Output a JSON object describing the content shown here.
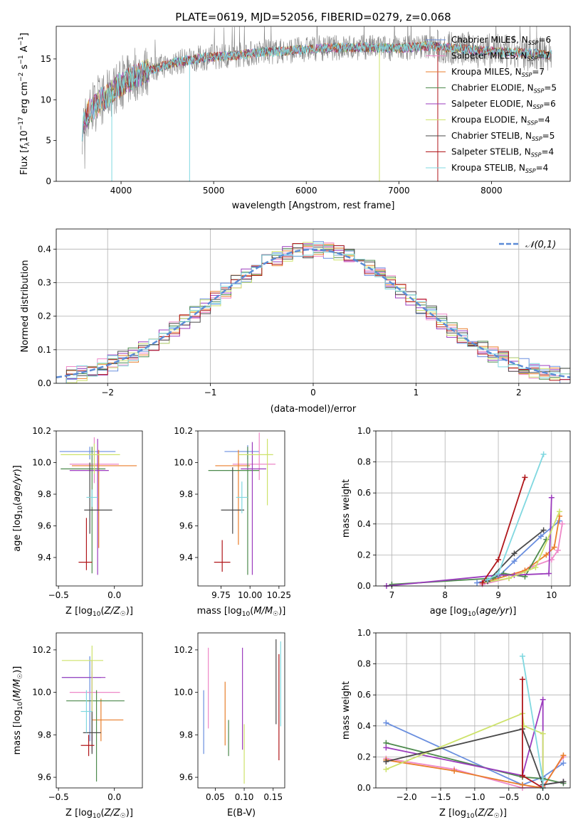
{
  "figure": {
    "title": "PLATE=0619, MJD=52056, FIBERID=0279, z=0.068"
  },
  "series_styles": [
    {
      "name": "Chabrier MILES",
      "n_ssp": "6",
      "color": "#6a8fdf"
    },
    {
      "name": "Salpeter MILES",
      "n_ssp": "7",
      "color": "#ee88c8"
    },
    {
      "name": "Kroupa MILES",
      "n_ssp": "7",
      "color": "#e97e2b"
    },
    {
      "name": "Chabrier ELODIE",
      "n_ssp": "5",
      "color": "#4d8a4d"
    },
    {
      "name": "Salpeter ELODIE",
      "n_ssp": "6",
      "color": "#9b3bbd"
    },
    {
      "name": "Kroupa ELODIE",
      "n_ssp": "4",
      "color": "#cde26a"
    },
    {
      "name": "Chabrier STELIB",
      "n_ssp": "5",
      "color": "#4a4a4a"
    },
    {
      "name": "Salpeter STELIB",
      "n_ssp": "4",
      "color": "#b0161a"
    },
    {
      "name": "Kroupa STELIB",
      "n_ssp": "4",
      "color": "#80d8e0"
    }
  ],
  "chart_data": [
    {
      "id": "spectrum",
      "type": "line",
      "title": "PLATE=0619, MJD=52056, FIBERID=0279, z=0.068",
      "xlabel": "wavelength [Angstrom, rest frame]",
      "ylabel": "Flux [f_λ 10^-17 erg cm^-2 s^-1 A^-1]",
      "xlim": [
        3300,
        8850
      ],
      "ylim": [
        0,
        19
      ],
      "xticks": [
        4000,
        5000,
        6000,
        7000,
        8000
      ],
      "yticks": [
        0,
        5,
        10,
        15
      ],
      "grid": false,
      "legend": "upper right",
      "data_color": "#808080",
      "continuum": [
        [
          3580,
          6.5
        ],
        [
          3650,
          8.5
        ],
        [
          3750,
          9.5
        ],
        [
          3850,
          10.5
        ],
        [
          3950,
          11.5
        ],
        [
          4050,
          12.2
        ],
        [
          4200,
          13.2
        ],
        [
          4400,
          14.0
        ],
        [
          4600,
          14.6
        ],
        [
          4800,
          15.0
        ],
        [
          5000,
          15.3
        ],
        [
          5200,
          15.4
        ],
        [
          5500,
          15.8
        ],
        [
          5800,
          16.0
        ],
        [
          6100,
          16.3
        ],
        [
          6400,
          16.4
        ],
        [
          6700,
          16.4
        ],
        [
          7000,
          16.3
        ],
        [
          7300,
          16.6
        ],
        [
          7600,
          16.3
        ],
        [
          7900,
          16.0
        ],
        [
          8200,
          15.8
        ],
        [
          8500,
          15.6
        ],
        [
          8650,
          15.5
        ]
      ],
      "model_drops": [
        {
          "x": 3900,
          "to": 0
        },
        {
          "x": 4740,
          "to": 0
        },
        {
          "x": 6790,
          "to": 0
        },
        {
          "x": 7420,
          "to": 0
        }
      ]
    },
    {
      "id": "residuals",
      "type": "step",
      "xlabel": "(data-model)/error",
      "ylabel": "Normed distribution",
      "xlim": [
        -2.5,
        2.5
      ],
      "ylim": [
        0,
        0.46
      ],
      "xticks": [
        -2,
        -1,
        0,
        1,
        2
      ],
      "yticks": [
        0.0,
        0.1,
        0.2,
        0.3,
        0.4
      ],
      "grid": true,
      "legend_entry": "𝒩(0,1)",
      "gaussian": {
        "mean": 0,
        "sigma": 1,
        "color": "#5b8bd6"
      },
      "bin_width": 0.1
    },
    {
      "id": "age_vs_Z",
      "type": "errorbar",
      "xlabel": "Z [log10(Z/Z☉)]",
      "ylabel": "age [log10(age/yr)]",
      "xlim": [
        -0.52,
        0.25
      ],
      "ylim": [
        9.22,
        10.2
      ],
      "xticks": [
        -0.5,
        0.0
      ],
      "yticks": [
        9.4,
        9.6,
        9.8,
        10.0,
        10.2
      ],
      "points": [
        {
          "x": -0.22,
          "y": 10.07,
          "xerr": [
            0.27,
            0.23
          ],
          "yerr": [
            0.05,
            0.03
          ]
        },
        {
          "x": -0.18,
          "y": 9.99,
          "xerr": [
            0.22,
            0.22
          ],
          "yerr": [
            0.12,
            0.17
          ]
        },
        {
          "x": -0.14,
          "y": 9.98,
          "xerr": [
            0.24,
            0.34
          ],
          "yerr": [
            0.52,
            0.1
          ]
        },
        {
          "x": -0.2,
          "y": 9.96,
          "xerr": [
            0.28,
            0.12
          ],
          "yerr": [
            0.66,
            0.14
          ]
        },
        {
          "x": -0.15,
          "y": 9.95,
          "xerr": [
            0.25,
            0.1
          ],
          "yerr": [
            0.66,
            0.2
          ]
        },
        {
          "x": -0.18,
          "y": 10.05,
          "xerr": [
            0.3,
            0.23
          ],
          "yerr": [
            0.12,
            0.07
          ]
        },
        {
          "x": -0.22,
          "y": 9.7,
          "xerr": [
            0.05,
            0.2
          ],
          "yerr": [
            0.15,
            0.3
          ]
        },
        {
          "x": -0.25,
          "y": 9.37,
          "xerr": [
            0.07,
            0.05
          ],
          "yerr": [
            0.05,
            0.28
          ]
        },
        {
          "x": -0.2,
          "y": 9.78,
          "xerr": [
            0.05,
            0.05
          ],
          "yerr": [
            0.06,
            0.05
          ]
        }
      ]
    },
    {
      "id": "age_vs_mass",
      "type": "errorbar",
      "xlabel": "mass [log10(M/M☉)]",
      "ylabel": "",
      "xlim": [
        9.55,
        10.3
      ],
      "ylim": [
        9.22,
        10.2
      ],
      "xticks": [
        9.75,
        10.0,
        10.25
      ],
      "yticks": [
        9.4,
        9.6,
        9.8,
        10.0,
        10.2
      ],
      "points": [
        {
          "x": 9.98,
          "y": 10.07,
          "xerr": [
            0.2,
            0.1
          ],
          "yerr": [
            0.05,
            0.04
          ]
        },
        {
          "x": 10.08,
          "y": 9.99,
          "xerr": [
            0.23,
            0.14
          ],
          "yerr": [
            0.1,
            0.2
          ]
        },
        {
          "x": 9.9,
          "y": 9.98,
          "xerr": [
            0.2,
            0.1
          ],
          "yerr": [
            0.5,
            0.1
          ]
        },
        {
          "x": 9.98,
          "y": 9.95,
          "xerr": [
            0.34,
            0.1
          ],
          "yerr": [
            0.66,
            0.15
          ]
        },
        {
          "x": 10.02,
          "y": 9.96,
          "xerr": [
            0.1,
            0.12
          ],
          "yerr": [
            0.67,
            0.17
          ]
        },
        {
          "x": 10.15,
          "y": 10.05,
          "xerr": [
            0.25,
            0.05
          ],
          "yerr": [
            0.32,
            0.1
          ]
        },
        {
          "x": 9.85,
          "y": 9.7,
          "xerr": [
            0.1,
            0.1
          ],
          "yerr": [
            0.15,
            0.27
          ]
        },
        {
          "x": 9.76,
          "y": 9.37,
          "xerr": [
            0.07,
            0.07
          ],
          "yerr": [
            0.06,
            0.14
          ]
        },
        {
          "x": 9.93,
          "y": 9.78,
          "xerr": [
            0.05,
            0.05
          ],
          "yerr": [
            0.1,
            0.1
          ]
        }
      ]
    },
    {
      "id": "weights_vs_age",
      "type": "line",
      "xlabel": "age [log10(age/yr)]",
      "ylabel": "mass weight",
      "xlim": [
        6.7,
        10.35
      ],
      "ylim": [
        0,
        1
      ],
      "xticks": [
        7,
        8,
        9,
        10
      ],
      "yticks": [
        0.0,
        0.2,
        0.4,
        0.6,
        0.8,
        1.0
      ],
      "grid": true,
      "series": [
        {
          "points": [
            [
              8.6,
              0.02
            ],
            [
              9.0,
              0.06
            ],
            [
              9.3,
              0.16
            ],
            [
              9.8,
              0.32
            ],
            [
              10.15,
              0.42
            ]
          ]
        },
        {
          "points": [
            [
              8.7,
              0.01
            ],
            [
              9.2,
              0.05
            ],
            [
              9.6,
              0.12
            ],
            [
              10.0,
              0.17
            ],
            [
              10.12,
              0.23
            ],
            [
              10.2,
              0.4
            ]
          ]
        },
        {
          "points": [
            [
              8.8,
              0.03
            ],
            [
              9.5,
              0.1
            ],
            [
              9.9,
              0.2
            ],
            [
              10.05,
              0.25
            ],
            [
              10.15,
              0.45
            ]
          ]
        },
        {
          "points": [
            [
              7.0,
              0.01
            ],
            [
              8.9,
              0.05
            ],
            [
              9.1,
              0.08
            ],
            [
              9.5,
              0.06
            ],
            [
              9.9,
              0.3
            ]
          ]
        },
        {
          "points": [
            [
              6.9,
              0.0
            ],
            [
              9.0,
              0.07
            ],
            [
              9.3,
              0.07
            ],
            [
              9.95,
              0.08
            ],
            [
              10.0,
              0.57
            ]
          ]
        },
        {
          "points": [
            [
              8.7,
              0.02
            ],
            [
              9.2,
              0.05
            ],
            [
              9.7,
              0.12
            ],
            [
              10.15,
              0.48
            ]
          ]
        },
        {
          "points": [
            [
              8.8,
              0.03
            ],
            [
              9.3,
              0.21
            ],
            [
              9.85,
              0.36
            ]
          ]
        },
        {
          "points": [
            [
              8.7,
              0.02
            ],
            [
              9.0,
              0.17
            ],
            [
              9.5,
              0.7
            ]
          ]
        },
        {
          "points": [
            [
              8.8,
              0.04
            ],
            [
              9.0,
              0.08
            ],
            [
              9.85,
              0.85
            ]
          ]
        }
      ]
    },
    {
      "id": "mass_vs_Z",
      "type": "errorbar",
      "xlabel": "Z [log10(Z/Z☉)]",
      "ylabel": "mass [log10(M/M☉)]",
      "xlim": [
        -0.52,
        0.25
      ],
      "ylim": [
        9.55,
        10.28
      ],
      "xticks": [
        -0.5,
        0.0
      ],
      "yticks": [
        9.6,
        9.8,
        10.0,
        10.2
      ],
      "points": [
        {
          "x": -0.22,
          "y": 10.07,
          "xerr": [
            0.25,
            0.1
          ],
          "yerr": [
            0.3,
            0.1
          ]
        },
        {
          "x": -0.2,
          "y": 10.0,
          "xerr": [
            0.2,
            0.25
          ],
          "yerr": [
            0.28,
            0.1
          ]
        },
        {
          "x": -0.12,
          "y": 9.87,
          "xerr": [
            0.08,
            0.2
          ],
          "yerr": [
            0.1,
            0.1
          ]
        },
        {
          "x": -0.16,
          "y": 9.96,
          "xerr": [
            0.27,
            0.25
          ],
          "yerr": [
            0.38,
            0.05
          ]
        },
        {
          "x": -0.2,
          "y": 10.07,
          "xerr": [
            0.27,
            0.12
          ],
          "yerr": [
            0.3,
            0.08
          ]
        },
        {
          "x": -0.2,
          "y": 10.15,
          "xerr": [
            0.27,
            0.1
          ],
          "yerr": [
            0.35,
            0.07
          ]
        },
        {
          "x": -0.2,
          "y": 9.81,
          "xerr": [
            0.08,
            0.08
          ],
          "yerr": [
            0.1,
            0.1
          ]
        },
        {
          "x": -0.23,
          "y": 9.75,
          "xerr": [
            0.07,
            0.05
          ],
          "yerr": [
            0.05,
            0.05
          ]
        },
        {
          "x": -0.25,
          "y": 9.91,
          "xerr": [
            0.05,
            0.05
          ],
          "yerr": [
            0.1,
            0.1
          ]
        }
      ]
    },
    {
      "id": "mass_vs_ebv",
      "type": "errorbar",
      "xlabel": "E(B-V)",
      "ylabel": "",
      "xlim": [
        0.02,
        0.17
      ],
      "ylim": [
        9.55,
        10.28
      ],
      "xticks": [
        0.05,
        0.1,
        0.15
      ],
      "yticks": [
        9.6,
        9.8,
        10.0,
        10.2
      ],
      "points": [
        {
          "x": 0.03,
          "y": 9.86,
          "yerr": [
            0.15,
            0.15
          ]
        },
        {
          "x": 0.038,
          "y": 10.02,
          "yerr": [
            0.19,
            0.19
          ]
        },
        {
          "x": 0.067,
          "y": 9.9,
          "yerr": [
            0.15,
            0.15
          ]
        },
        {
          "x": 0.073,
          "y": 9.79,
          "yerr": [
            0.09,
            0.08
          ]
        },
        {
          "x": 0.097,
          "y": 9.98,
          "yerr": [
            0.25,
            0.23
          ]
        },
        {
          "x": 0.1,
          "y": 9.65,
          "yerr": [
            0.08,
            0.2
          ]
        },
        {
          "x": 0.155,
          "y": 10.05,
          "yerr": [
            0.2,
            0.2
          ]
        },
        {
          "x": 0.16,
          "y": 9.95,
          "yerr": [
            0.27,
            0.23
          ]
        },
        {
          "x": 0.163,
          "y": 10.04,
          "yerr": [
            0.2,
            0.2
          ]
        }
      ]
    },
    {
      "id": "weights_vs_Z",
      "type": "line",
      "xlabel": "Z [log10(Z/Z☉)]",
      "ylabel": "mass weight",
      "xlim": [
        -2.45,
        0.4
      ],
      "ylim": [
        0,
        1
      ],
      "xticks": [
        -2.0,
        -1.5,
        -1.0,
        -0.5,
        0.0
      ],
      "yticks": [
        0.0,
        0.2,
        0.4,
        0.6,
        0.8,
        1.0
      ],
      "grid": true,
      "series": [
        {
          "points": [
            [
              -2.3,
              0.42
            ],
            [
              -0.3,
              0.02
            ],
            [
              0.0,
              0.07
            ],
            [
              0.3,
              0.16
            ]
          ]
        },
        {
          "points": [
            [
              -2.3,
              0.19
            ],
            [
              -1.3,
              0.12
            ],
            [
              -0.3,
              0.0
            ],
            [
              0.0,
              0.01
            ],
            [
              0.3,
              0.2
            ]
          ]
        },
        {
          "points": [
            [
              -2.3,
              0.18
            ],
            [
              -1.3,
              0.11
            ],
            [
              -0.3,
              0.02
            ],
            [
              0.0,
              0.0
            ],
            [
              0.3,
              0.21
            ]
          ]
        },
        {
          "points": [
            [
              -2.3,
              0.29
            ],
            [
              -0.3,
              0.07
            ],
            [
              0.0,
              0.06
            ],
            [
              0.3,
              0.03
            ]
          ]
        },
        {
          "points": [
            [
              -2.3,
              0.26
            ],
            [
              -0.3,
              0.08
            ],
            [
              0.0,
              0.57
            ],
            [
              0.0,
              0.02
            ],
            [
              0.3,
              0.04
            ]
          ]
        },
        {
          "points": [
            [
              -2.3,
              0.12
            ],
            [
              -0.3,
              0.48
            ],
            [
              -0.28,
              0.4
            ],
            [
              0.0,
              0.35
            ],
            [
              0.0,
              0.0
            ]
          ]
        },
        {
          "points": [
            [
              -2.3,
              0.17
            ],
            [
              -0.3,
              0.38
            ],
            [
              0.0,
              0.02
            ],
            [
              0.3,
              0.04
            ]
          ]
        },
        {
          "points": [
            [
              -0.3,
              0.7
            ],
            [
              -0.3,
              0.08
            ],
            [
              0.0,
              0.0
            ]
          ]
        },
        {
          "points": [
            [
              -0.3,
              0.85
            ],
            [
              0.0,
              0.05
            ],
            [
              0.0,
              0.0
            ]
          ]
        }
      ]
    }
  ]
}
